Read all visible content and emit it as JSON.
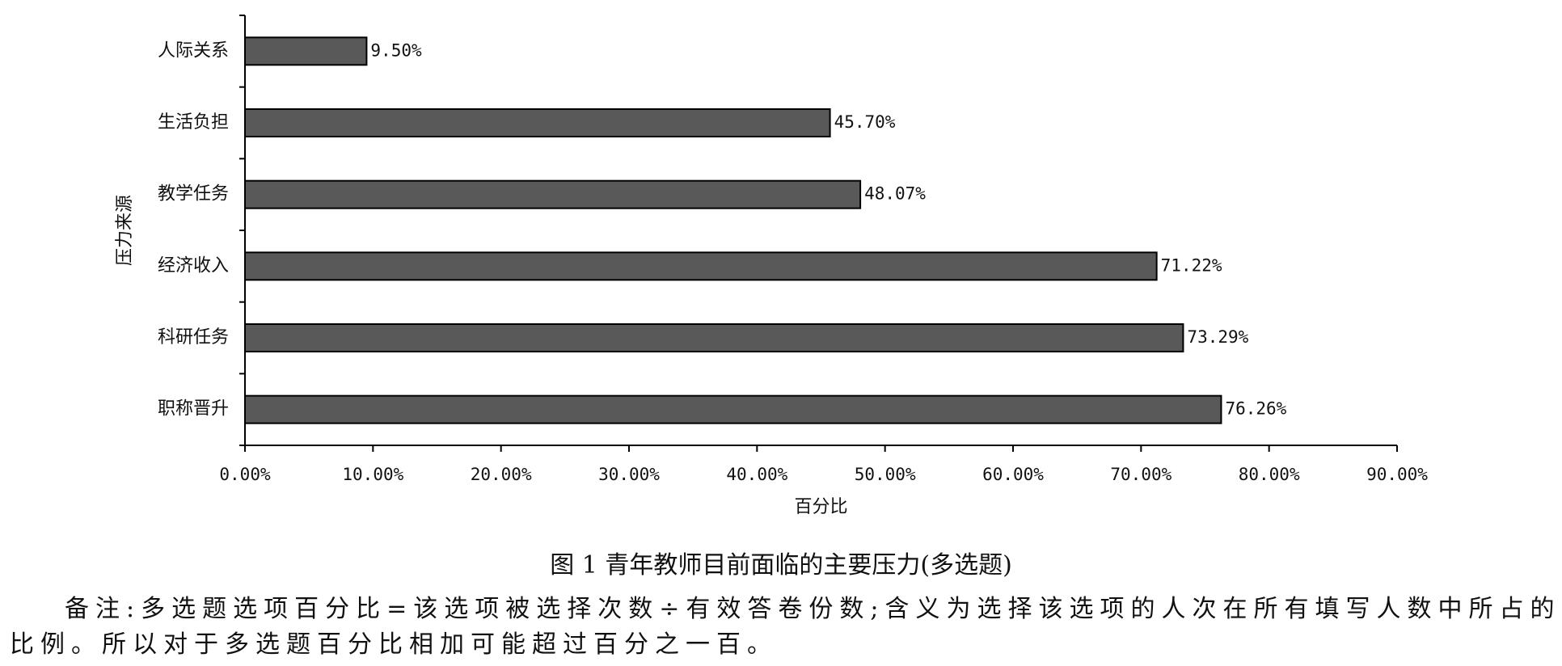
{
  "chart_data": {
    "type": "barh",
    "categories": [
      "人际关系",
      "生活负担",
      "教学任务",
      "经济收入",
      "科研任务",
      "职称晋升"
    ],
    "values": [
      9.5,
      45.7,
      48.07,
      71.22,
      73.29,
      76.26
    ],
    "value_labels": [
      "9.50%",
      "45.70%",
      "48.07%",
      "71.22%",
      "73.29%",
      "76.26%"
    ],
    "color": "#595959",
    "xlim": [
      0,
      90
    ],
    "xticks": [
      {
        "value": 0,
        "label": "0.00%"
      },
      {
        "value": 10,
        "label": "10.00%"
      },
      {
        "value": 20,
        "label": "20.00%"
      },
      {
        "value": 30,
        "label": "30.00%"
      },
      {
        "value": 40,
        "label": "40.00%"
      },
      {
        "value": 50,
        "label": "50.00%"
      },
      {
        "value": 60,
        "label": "60.00%"
      },
      {
        "value": 70,
        "label": "70.00%"
      },
      {
        "value": 80,
        "label": "80.00%"
      },
      {
        "value": 90,
        "label": "90.00%"
      }
    ],
    "xlabel": "百分比",
    "ylabel": "压力来源"
  },
  "caption": "图 1  青年教师目前面临的主要压力(多选题)",
  "note": [
    "备注:多选题选项百分比=该选项被选择次数÷有效答卷份数;含义为选择该选项的人次在所有填写人数中所占的",
    "比例。所以对于多选题百分比相加可能超过百分之一百。"
  ]
}
